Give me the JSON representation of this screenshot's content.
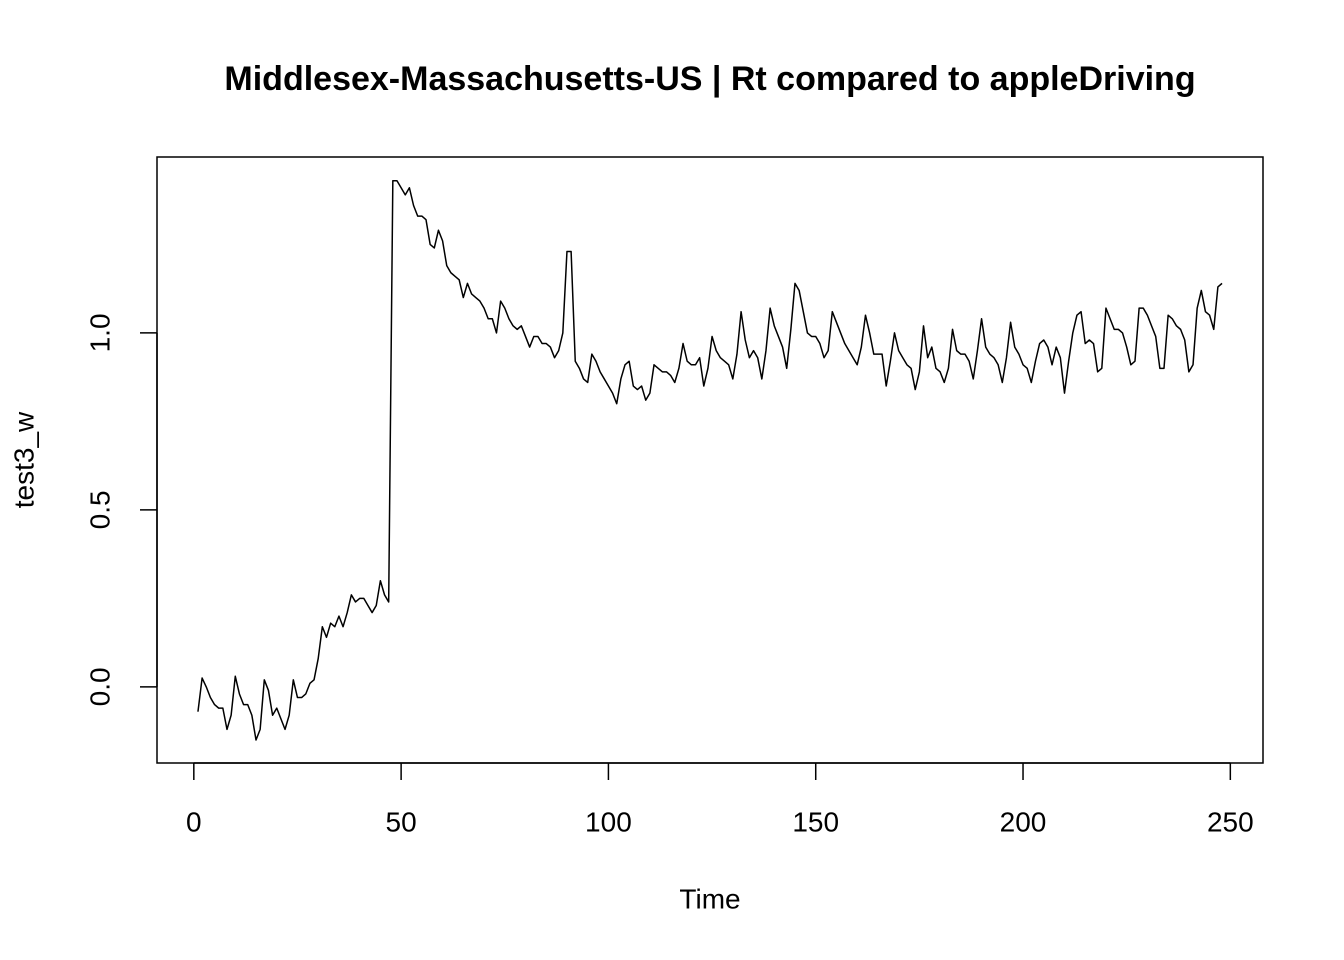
{
  "chart_data": {
    "type": "line",
    "title": "Middlesex-Massachusetts-US | Rt compared to appleDriving",
    "xlabel": "Time",
    "ylabel": "test3_w",
    "xlim": [
      -8.88,
      257.88
    ],
    "ylim": [
      -0.215,
      1.497
    ],
    "xticks": [
      0,
      50,
      100,
      150,
      200,
      250
    ],
    "yticks": [
      {
        "value": 0,
        "label": "0.0"
      },
      0.5,
      {
        "value": 1,
        "label": "1.0"
      }
    ],
    "color": "#000000",
    "x": [
      1,
      2,
      3,
      4,
      5,
      6,
      7,
      8,
      9,
      10,
      11,
      12,
      13,
      14,
      15,
      16,
      17,
      18,
      19,
      20,
      21,
      22,
      23,
      24,
      25,
      26,
      27,
      28,
      29,
      30,
      31,
      32,
      33,
      34,
      35,
      36,
      37,
      38,
      39,
      40,
      41,
      42,
      43,
      44,
      45,
      46,
      47,
      48,
      49,
      50,
      51,
      52,
      53,
      54,
      55,
      56,
      57,
      58,
      59,
      60,
      61,
      62,
      63,
      64,
      65,
      66,
      67,
      68,
      69,
      70,
      71,
      72,
      73,
      74,
      75,
      76,
      77,
      78,
      79,
      80,
      81,
      82,
      83,
      84,
      85,
      86,
      87,
      88,
      89,
      90,
      91,
      92,
      93,
      94,
      95,
      96,
      97,
      98,
      99,
      100,
      101,
      102,
      103,
      104,
      105,
      106,
      107,
      108,
      109,
      110,
      111,
      112,
      113,
      114,
      115,
      116,
      117,
      118,
      119,
      120,
      121,
      122,
      123,
      124,
      125,
      126,
      127,
      128,
      129,
      130,
      131,
      132,
      133,
      134,
      135,
      136,
      137,
      138,
      139,
      140,
      141,
      142,
      143,
      144,
      145,
      146,
      147,
      148,
      149,
      150,
      151,
      152,
      153,
      154,
      155,
      156,
      157,
      158,
      159,
      160,
      161,
      162,
      163,
      164,
      165,
      166,
      167,
      168,
      169,
      170,
      171,
      172,
      173,
      174,
      175,
      176,
      177,
      178,
      179,
      180,
      181,
      182,
      183,
      184,
      185,
      186,
      187,
      188,
      189,
      190,
      191,
      192,
      193,
      194,
      195,
      196,
      197,
      198,
      199,
      200,
      201,
      202,
      203,
      204,
      205,
      206,
      207,
      208,
      209,
      210,
      211,
      212,
      213,
      214,
      215,
      216,
      217,
      218,
      219,
      220,
      221,
      222,
      223,
      224,
      225,
      226,
      227,
      228,
      229,
      230,
      231,
      232,
      233,
      234,
      235,
      236,
      237,
      238,
      239,
      240,
      241,
      242,
      243,
      244,
      245,
      246,
      247,
      248
    ],
    "values": [
      -0.07,
      0.025,
      0.0,
      -0.03,
      -0.05,
      -0.06,
      -0.06,
      -0.12,
      -0.08,
      0.03,
      -0.02,
      -0.05,
      -0.05,
      -0.08,
      -0.15,
      -0.12,
      0.02,
      -0.01,
      -0.08,
      -0.06,
      -0.09,
      -0.12,
      -0.08,
      0.02,
      -0.03,
      -0.03,
      -0.02,
      0.01,
      0.02,
      0.08,
      0.17,
      0.14,
      0.18,
      0.17,
      0.2,
      0.17,
      0.21,
      0.26,
      0.24,
      0.25,
      0.25,
      0.23,
      0.21,
      0.23,
      0.3,
      0.26,
      0.24,
      1.43,
      1.43,
      1.41,
      1.39,
      1.41,
      1.36,
      1.33,
      1.33,
      1.32,
      1.25,
      1.24,
      1.29,
      1.26,
      1.19,
      1.17,
      1.16,
      1.15,
      1.1,
      1.14,
      1.11,
      1.1,
      1.09,
      1.07,
      1.04,
      1.04,
      1.0,
      1.09,
      1.07,
      1.04,
      1.02,
      1.01,
      1.02,
      0.99,
      0.96,
      0.99,
      0.99,
      0.97,
      0.97,
      0.96,
      0.93,
      0.95,
      1.0,
      1.23,
      1.23,
      0.92,
      0.9,
      0.87,
      0.86,
      0.94,
      0.92,
      0.89,
      0.87,
      0.85,
      0.83,
      0.8,
      0.87,
      0.91,
      0.92,
      0.85,
      0.84,
      0.85,
      0.81,
      0.83,
      0.91,
      0.9,
      0.89,
      0.89,
      0.88,
      0.86,
      0.9,
      0.97,
      0.92,
      0.91,
      0.91,
      0.93,
      0.85,
      0.9,
      0.99,
      0.95,
      0.93,
      0.92,
      0.91,
      0.87,
      0.94,
      1.06,
      0.98,
      0.93,
      0.95,
      0.93,
      0.87,
      0.95,
      1.07,
      1.02,
      0.99,
      0.96,
      0.9,
      1.01,
      1.14,
      1.12,
      1.06,
      1.0,
      0.99,
      0.99,
      0.97,
      0.93,
      0.95,
      1.06,
      1.03,
      1.0,
      0.97,
      0.95,
      0.93,
      0.91,
      0.96,
      1.05,
      1.0,
      0.94,
      0.94,
      0.94,
      0.85,
      0.92,
      1.0,
      0.95,
      0.93,
      0.91,
      0.9,
      0.84,
      0.89,
      1.02,
      0.93,
      0.96,
      0.9,
      0.89,
      0.86,
      0.9,
      1.01,
      0.95,
      0.94,
      0.94,
      0.92,
      0.87,
      0.95,
      1.04,
      0.96,
      0.94,
      0.93,
      0.91,
      0.86,
      0.93,
      1.03,
      0.96,
      0.94,
      0.91,
      0.9,
      0.86,
      0.92,
      0.97,
      0.98,
      0.96,
      0.91,
      0.96,
      0.93,
      0.83,
      0.92,
      1.0,
      1.05,
      1.06,
      0.97,
      0.98,
      0.97,
      0.89,
      0.9,
      1.07,
      1.04,
      1.01,
      1.01,
      1.0,
      0.96,
      0.91,
      0.92,
      1.07,
      1.07,
      1.05,
      1.02,
      0.99,
      0.9,
      0.9,
      1.05,
      1.04,
      1.02,
      1.01,
      0.98,
      0.89,
      0.91,
      1.07,
      1.12,
      1.06,
      1.05,
      1.01,
      1.13,
      1.14
    ]
  }
}
